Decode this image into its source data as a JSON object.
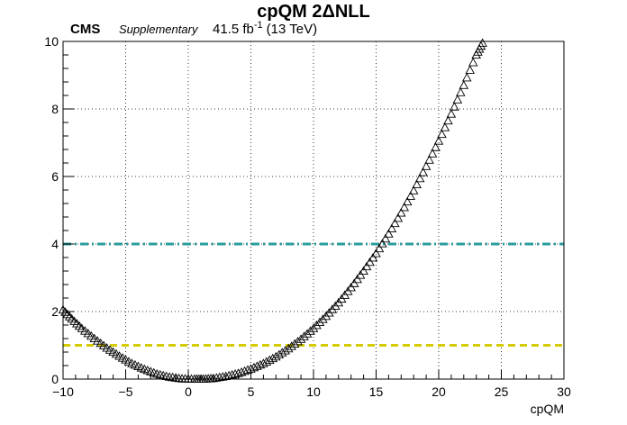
{
  "chart_data": {
    "type": "scatter",
    "title": "cpQM 2ΔNLL",
    "cms_label": "CMS",
    "cms_extra": "Supplementary",
    "lumi_value": "41.5 fb",
    "lumi_exponent": "-1",
    "lumi_energy": "(13 TeV)",
    "xlabel": "cpQM",
    "ylabel": "",
    "xlim": [
      -10,
      30
    ],
    "ylim": [
      0,
      10
    ],
    "xticks": [
      -10,
      -5,
      0,
      5,
      10,
      15,
      20,
      25,
      30
    ],
    "yticks": [
      0,
      2,
      4,
      6,
      8,
      10
    ],
    "xtick_labels": [
      "−10",
      "−5",
      "0",
      "5",
      "10",
      "15",
      "20",
      "25",
      "30"
    ],
    "ytick_labels": [
      "0",
      "2",
      "4",
      "6",
      "8",
      "10"
    ],
    "grid": true,
    "marker": "open-triangle",
    "series": [
      {
        "x": [
          -10.0,
          -9.3,
          -8.5,
          -7.5,
          -6.5,
          -5.5,
          -4.5,
          -3.5,
          -2.5,
          -1.5,
          -0.5,
          0.5,
          1.2,
          2.0,
          3.0,
          4.0,
          5.0,
          6.0,
          7.0,
          8.0,
          9.0,
          10.0,
          11.0,
          12.0,
          13.0,
          14.0,
          15.0,
          16.0,
          17.0,
          18.0,
          19.0,
          20.0,
          21.0,
          22.0,
          23.0,
          23.5
        ],
        "y": [
          2.05,
          1.78,
          1.5,
          1.2,
          0.92,
          0.68,
          0.46,
          0.29,
          0.15,
          0.06,
          0.01,
          0.0,
          0.0,
          0.02,
          0.08,
          0.17,
          0.3,
          0.46,
          0.66,
          0.9,
          1.18,
          1.5,
          1.86,
          2.26,
          2.71,
          3.2,
          3.72,
          4.3,
          4.92,
          5.58,
          6.3,
          7.05,
          7.85,
          8.7,
          9.6,
          9.95
        ]
      }
    ],
    "reference_lines": [
      {
        "y": 4,
        "color": "#2a9d9d",
        "style": "dash-dot"
      },
      {
        "y": 1,
        "color": "#d4cc00",
        "style": "dashed"
      }
    ]
  }
}
